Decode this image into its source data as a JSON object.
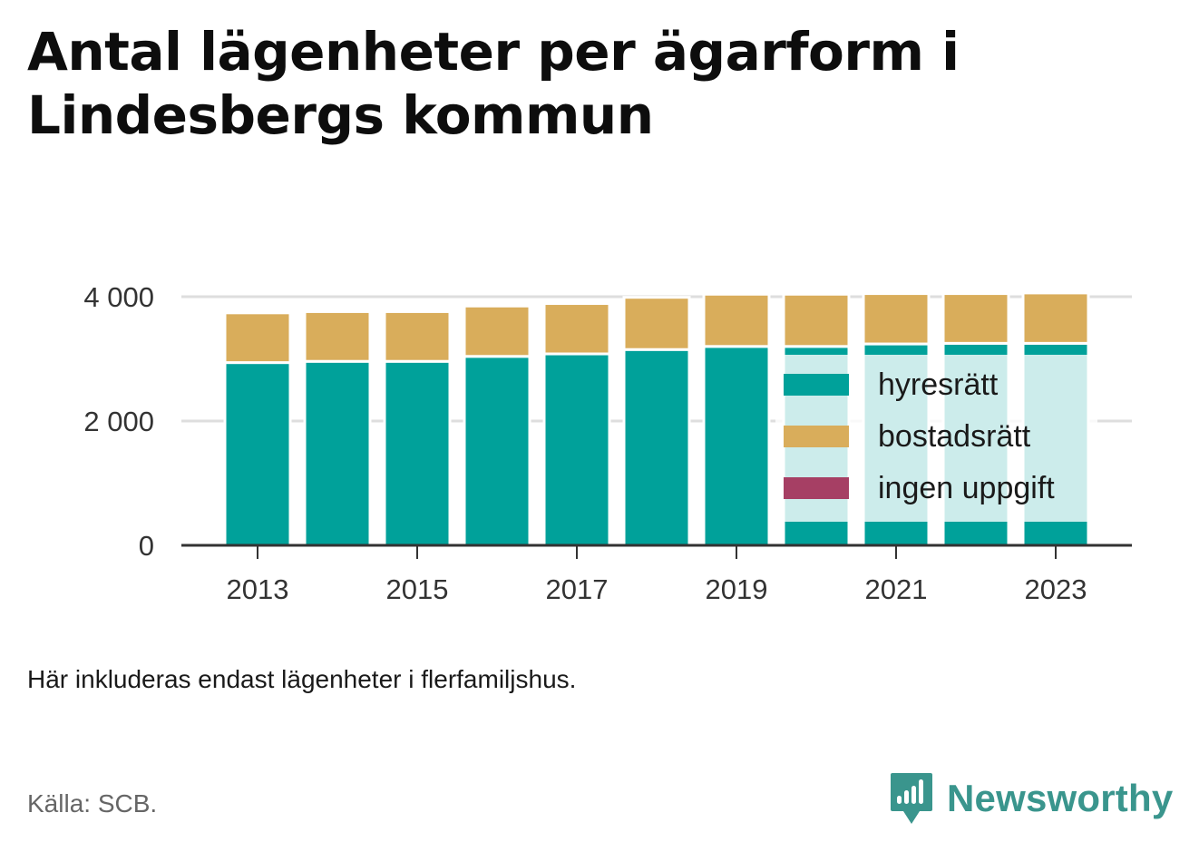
{
  "title": "Antal lägenheter per ägarform i Lindesbergs kommun",
  "note": "Här inkluderas endast lägenheter i flerfamiljshus.",
  "source": "Källa: SCB.",
  "brand": "Newsworthy",
  "colors": {
    "hyresratt": "#00a19a",
    "bostadsratt": "#d9ad5b",
    "ingen_uppgift": "#a63f64",
    "brand": "#3a958d",
    "legend_bg": "#ffffff"
  },
  "chart_data": {
    "type": "bar",
    "stacked": true,
    "categories": [
      "2013",
      "2014",
      "2015",
      "2016",
      "2017",
      "2018",
      "2019",
      "2020",
      "2021",
      "2022",
      "2023"
    ],
    "x_tick_labels": [
      "2013",
      "2015",
      "2017",
      "2019",
      "2021",
      "2023"
    ],
    "y_ticks": [
      0,
      2000,
      4000
    ],
    "y_tick_labels": [
      "0",
      "2 000",
      "4 000"
    ],
    "ylim": [
      0,
      4000
    ],
    "grid": true,
    "legend_position": "inside-right",
    "series": [
      {
        "name": "hyresrätt",
        "color": "#00a19a",
        "values": [
          2940,
          2960,
          2960,
          3040,
          3080,
          3150,
          3200,
          3200,
          3240,
          3250,
          3250
        ]
      },
      {
        "name": "bostadsrätt",
        "color": "#d9ad5b",
        "values": [
          800,
          800,
          800,
          810,
          810,
          840,
          840,
          840,
          810,
          800,
          810
        ]
      },
      {
        "name": "ingen uppgift",
        "color": "#a63f64",
        "values": [
          0,
          0,
          0,
          0,
          0,
          0,
          0,
          0,
          0,
          0,
          0
        ]
      }
    ]
  }
}
